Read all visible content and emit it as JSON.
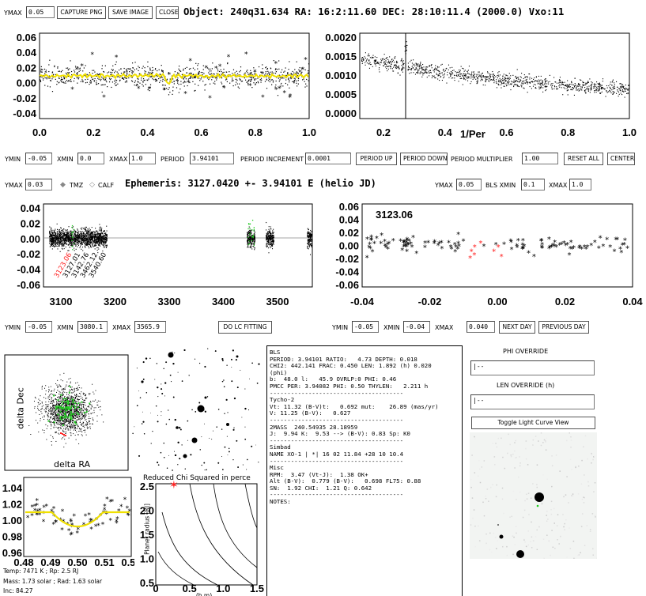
{
  "top_bar": {
    "ymax_label": "YMAX",
    "ymax_value": "0.05",
    "capture_png": "CAPTURE PNG",
    "save_image": "SAVE IMAGE",
    "close": "CLOSE",
    "object_title": "Object: 240q31.634  RA: 16:2:11.60 DEC: 28:10:11.4 (2000.0) Vxo:11"
  },
  "lc_plot": {
    "yticks": [
      "0.06",
      "0.04",
      "0.02",
      "0.00",
      "-0.02",
      "-0.04"
    ],
    "xticks": [
      "0.0",
      "0.2",
      "0.4",
      "0.6",
      "0.8",
      "1.0"
    ]
  },
  "periodogram": {
    "yticks": [
      "0.0020",
      "0.0015",
      "0.0010",
      "0.0005",
      "0.0000"
    ],
    "xticks": [
      "0.2",
      "0.4",
      "0.6",
      "0.8",
      "1.0"
    ],
    "xlabel": "1/Per"
  },
  "controls_row1": {
    "ymin_label": "YMIN",
    "ymin_value": "-0.05",
    "xmin_label": "XMIN",
    "xmin_value": "0.0",
    "xmax_label": "XMAX",
    "xmax_value": "1.0",
    "period_label": "PERIOD",
    "period_value": "3.94101",
    "period_inc_label": "PERIOD INCREMENT",
    "period_inc_value": "0.0001",
    "period_up": "PERIOD UP",
    "period_down": "PERIOD DOWN",
    "period_mult_label": "PERIOD MULTIPLIER",
    "period_mult_value": "1.00",
    "reset_all": "RESET ALL",
    "center": "CENTER"
  },
  "controls_row2": {
    "ymax_label": "YMAX",
    "ymax_value": "0.03",
    "tmz": "TMZ",
    "calf": "CALF",
    "ephemeris": "Ephemeris: 3127.0420 +- 3.94101 E (helio JD)",
    "ymax2_label": "YMAX",
    "ymax2_value": "0.05",
    "bls_xmin_label": "BLS XMIN",
    "bls_xmin_value": "0.1",
    "xmax_label": "XMAX",
    "xmax_value": "1.0"
  },
  "time_plot": {
    "yticks": [
      "0.04",
      "0.02",
      "0.00",
      "-0.02",
      "-0.04",
      "-0.06"
    ],
    "xticks": [
      "3100",
      "3200",
      "3300",
      "3400",
      "3500"
    ],
    "epochs": [
      "3123.06",
      "3127.01",
      "3142.76",
      "3462.12",
      "3540.60"
    ]
  },
  "zoom_plot": {
    "yticks": [
      "0.06",
      "0.04",
      "0.02",
      "0.00",
      "-0.02",
      "-0.04",
      "-0.06"
    ],
    "xticks": [
      "-0.04",
      "-0.02",
      "0.00",
      "0.02",
      "0.04"
    ],
    "annotation": "3123.06"
  },
  "controls_row3": {
    "ymin_label": "YMIN",
    "ymin_value": "-0.05",
    "xmin_label": "XMIN",
    "xmin_value": "3080.1",
    "xmax_label": "XMAX",
    "xmax_value": "3565.9",
    "do_lc_fitting": "DO LC FITTING",
    "ymin2_label": "YMIN",
    "ymin2_value": "-0.05",
    "xmin2_label": "XMIN",
    "xmin2_value": "-0.04",
    "xmax2_label": "XMAX",
    "xmax2_value": "0.040",
    "next_day": "NEXT DAY",
    "previous_day": "PREVIOUS DAY"
  },
  "centroid_plot": {
    "ylabel": "delta Dec",
    "xlabel": "delta RA"
  },
  "fit_plot": {
    "yticks": [
      "1.04",
      "1.02",
      "1.00",
      "0.98",
      "0.96"
    ],
    "xticks": [
      "0.48",
      "0.49",
      "0.50",
      "0.51",
      "0.52"
    ],
    "info": [
      "Temp: 7471 K ; Rp: 2.5 RJ",
      "Mass:  1.73 solar ; Rad:  1.63 solar",
      "Inc: 84.27"
    ]
  },
  "chi_plot": {
    "title": "Reduced Chi Squared in perce",
    "ylabel": "Planet radius [RJ]",
    "yticks": [
      "2.5",
      "2.0",
      "1.5",
      "1.0",
      "0.5"
    ],
    "xticks": [
      "0",
      "0.5",
      "1.0",
      "1.5"
    ],
    "xlabel": "(b,m)"
  },
  "info_panel": {
    "lines": [
      "BLS",
      "PERIOD: 3.94101 RATIO:   4.73 DEPTH: 0.018",
      "CHI2: 442.141 FRAC: 0.450 LEN: 1.892 (h) 0.020",
      "(phi)",
      "b:  48.0 l:   45.9 OVRLP:0 PHI: 0.46",
      "PMCC PER: 3.94082 PHI: 0.50 THYLEN:   2.211 h",
      "--------------------------------------",
      "Tycho-2",
      "Vt: 11.32 (B-V)t:   0.692 mut:    26.89 (mas/yr)",
      "V: 11.25 (B-V):   0.627",
      "--------------------------------------",
      "2MASS  240.54935 28.18959",
      "J:  9.94 K:  9.53 --> (B-V): 0.83 Sp: K0",
      "--------------------------------------",
      "Simbad",
      "NAME XO-1 | *| 16 02 11.84 +28 10 10.4",
      "--------------------------------------",
      "Misc",
      "RPM:  3.47 (Vt-J):  1.38 OK+",
      "Alt (B-V):  0.779 (B-V):   0.698 FL75: 0.88",
      "SN:  1.92 CHI:  1.21 Q: 0.642",
      "--------------------------------------",
      "NOTES:"
    ]
  },
  "right_panel": {
    "phi_override": "PHI OVERRIDE",
    "len_override": "LEN OVERRIDE (h)",
    "toggle_lc": "Toggle Light Curve View"
  },
  "colors": {
    "fit_line": "#f0e000",
    "transit_points": "#ff2020",
    "green_points": "#22cc22"
  }
}
